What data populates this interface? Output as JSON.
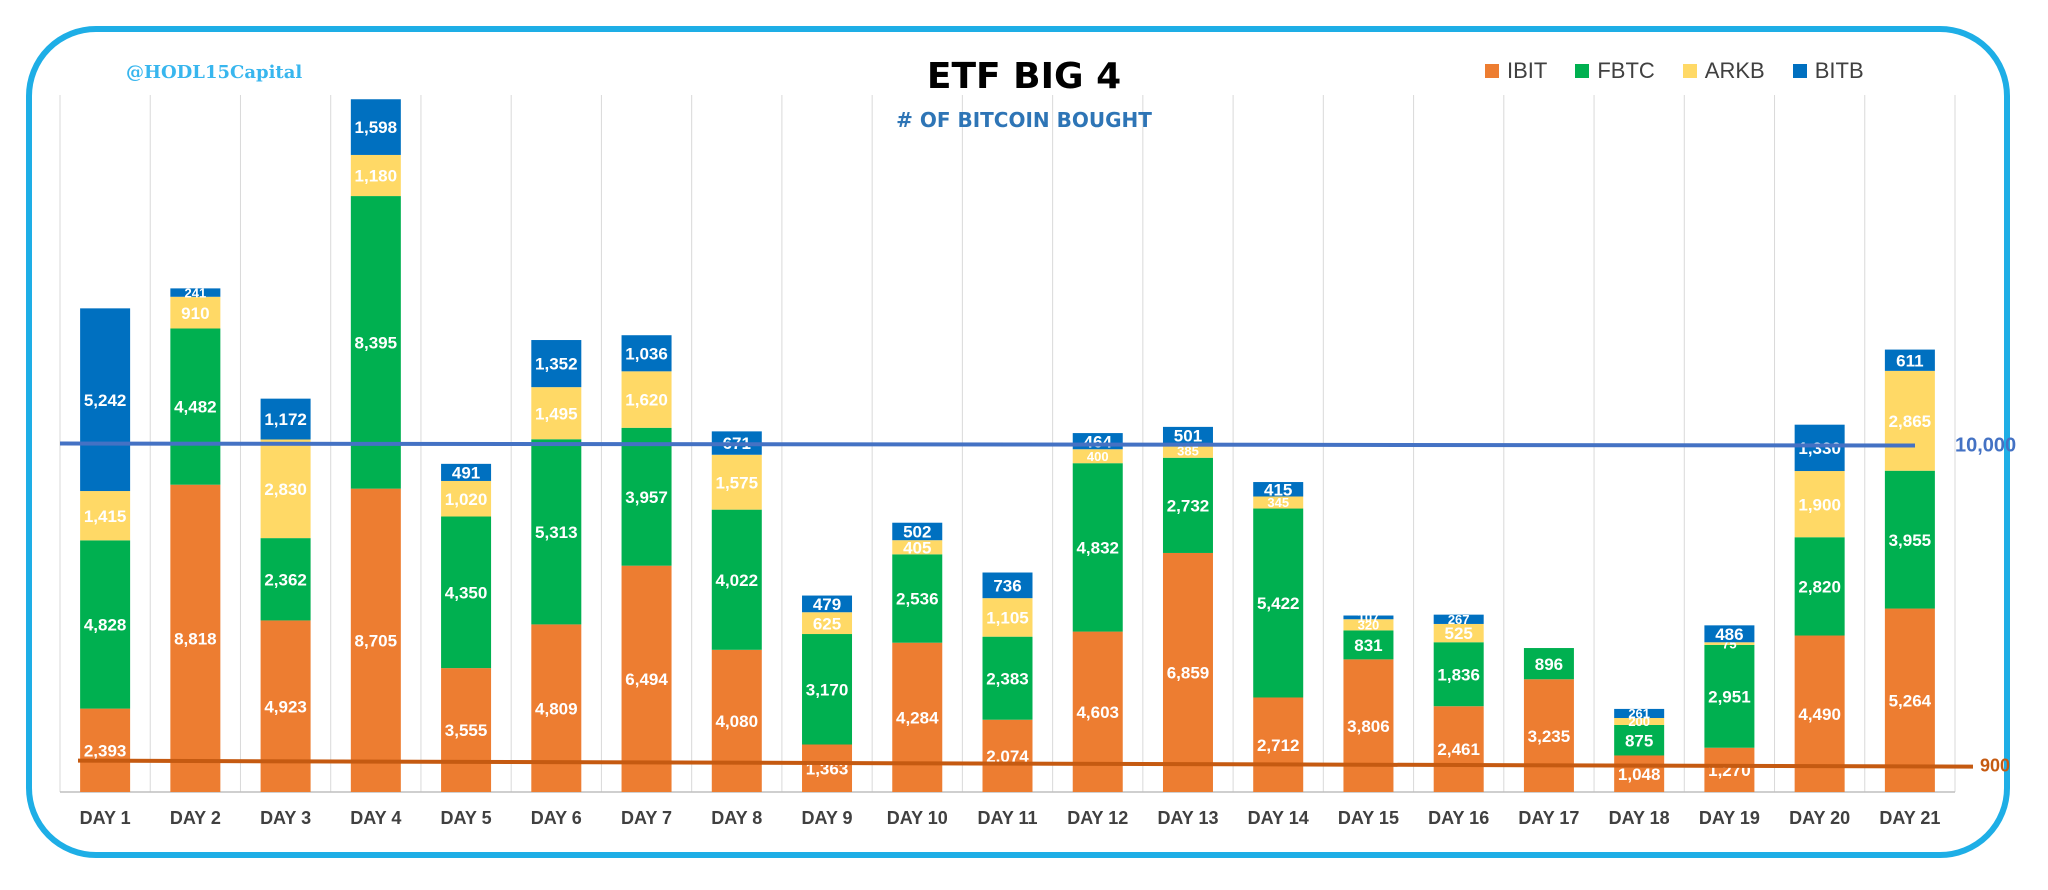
{
  "header": {
    "handle": "@HODL15Capital",
    "title": "ETF BIG 4",
    "subtitle": "# OF BITCOIN BOUGHT"
  },
  "chart_data": {
    "type": "bar",
    "stacked": true,
    "grid": "vertical",
    "legend_position": "top-right",
    "categories": [
      "DAY 1",
      "DAY 2",
      "DAY 3",
      "DAY 4",
      "DAY 5",
      "DAY 6",
      "DAY 7",
      "DAY 8",
      "DAY 9",
      "DAY 10",
      "DAY 11",
      "DAY 12",
      "DAY 13",
      "DAY 14",
      "DAY 15",
      "DAY 16",
      "DAY 17",
      "DAY 18",
      "DAY 19",
      "DAY 20",
      "DAY 21"
    ],
    "series": [
      {
        "name": "IBIT",
        "color": "#ed7d31",
        "values": [
          2393,
          8818,
          4923,
          8705,
          3555,
          4809,
          6494,
          4080,
          1363,
          4284,
          2074,
          4603,
          6859,
          2712,
          3806,
          2461,
          3235,
          1048,
          1270,
          4490,
          5264
        ]
      },
      {
        "name": "FBTC",
        "color": "#00b050",
        "values": [
          4828,
          4482,
          2362,
          8395,
          4350,
          5313,
          3957,
          4022,
          3170,
          2536,
          2383,
          4832,
          2732,
          5422,
          831,
          1836,
          896,
          875,
          2951,
          2820,
          3955
        ]
      },
      {
        "name": "ARKB",
        "color": "#ffd966",
        "values": [
          1415,
          910,
          2830,
          1180,
          1020,
          1495,
          1620,
          1575,
          625,
          405,
          1105,
          400,
          385,
          345,
          320,
          525,
          0,
          200,
          75,
          1900,
          2865
        ]
      },
      {
        "name": "BITB",
        "color": "#0070c0",
        "values": [
          5242,
          241,
          1172,
          1598,
          491,
          1352,
          1036,
          671,
          479,
          502,
          736,
          464,
          501,
          415,
          107,
          267,
          0,
          261,
          486,
          1330,
          611
        ]
      }
    ],
    "data_labels": {
      "IBIT": [
        "2,393",
        "8,818",
        "4,923",
        "8,705",
        "3,555",
        "4,809",
        "6,494",
        "4,080",
        "1,363",
        "4,284",
        "2,074",
        "4,603",
        "6,859",
        "2,712",
        "3,806",
        "2,461",
        "3,235",
        "1,048",
        "1,270",
        "4,490",
        "5,264"
      ],
      "FBTC": [
        "4,828",
        "4,482",
        "2,362",
        "8,395",
        "4,350",
        "5,313",
        "3,957",
        "4,022",
        "3,170",
        "2,536",
        "2,383",
        "4,832",
        "2,732",
        "5,422",
        "831",
        "1,836",
        "896",
        "875",
        "2,951",
        "2,820",
        "3,955"
      ],
      "ARKB": [
        "1,415",
        "910",
        "2,830",
        "1,180",
        "1,020",
        "1,495",
        "1,620",
        "1,575",
        "625",
        "405",
        "1,105",
        "400",
        "385",
        "345",
        "320",
        "525",
        "",
        "200",
        "75",
        "1,900",
        "2,865"
      ],
      "BITB": [
        "5,242",
        "241",
        "1,172",
        "1,598",
        "491",
        "1,352",
        "1,036",
        "671",
        "479",
        "502",
        "736",
        "464",
        "501",
        "415",
        "107",
        "267",
        "",
        "261",
        "486",
        "1,330",
        "611"
      ]
    },
    "reference_lines": [
      {
        "label": "10,000",
        "value": 10000,
        "color": "#4472c4"
      },
      {
        "label": "900",
        "value": 900,
        "color": "#c55a11"
      }
    ],
    "ylim": [
      0,
      20000
    ]
  }
}
